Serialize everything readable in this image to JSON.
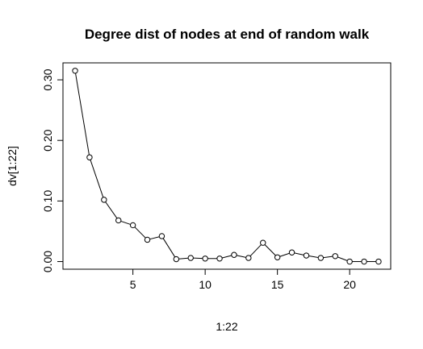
{
  "chart_data": {
    "type": "line",
    "title": "Degree dist of nodes at end of random walk",
    "xlabel": "1:22",
    "ylabel": "dv[1:22]",
    "xlim": [
      0.16,
      22.84
    ],
    "ylim": [
      -0.0126,
      0.328
    ],
    "x_ticks": [
      5,
      10,
      15,
      20
    ],
    "x_tick_labels": [
      "5",
      "10",
      "15",
      "20"
    ],
    "y_ticks": [
      0.0,
      0.1,
      0.2,
      0.3
    ],
    "y_tick_labels": [
      "0.00",
      "0.10",
      "0.20",
      "0.30"
    ],
    "markers": "open-circle",
    "grid": false,
    "x": [
      1,
      2,
      3,
      4,
      5,
      6,
      7,
      8,
      9,
      10,
      11,
      12,
      13,
      14,
      15,
      16,
      17,
      18,
      19,
      20,
      21,
      22
    ],
    "series": [
      {
        "values": [
          0.315,
          0.172,
          0.102,
          0.068,
          0.06,
          0.036,
          0.042,
          0.004,
          0.006,
          0.005,
          0.005,
          0.011,
          0.006,
          0.031,
          0.007,
          0.015,
          0.01,
          0.006,
          0.009,
          0.0,
          0.0,
          0.0
        ]
      }
    ]
  }
}
